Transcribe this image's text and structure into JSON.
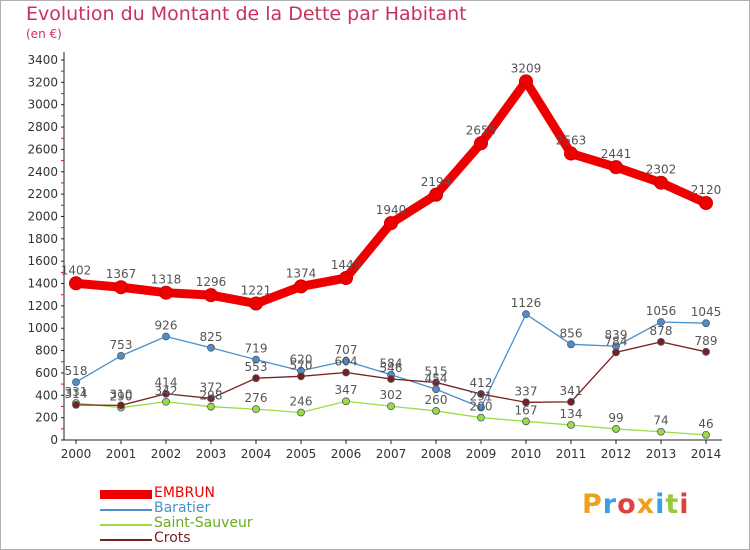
{
  "title": "Evolution du Montant de la Dette par Habitant",
  "subtitle": "(en €)",
  "logo": {
    "text": "Proxiti",
    "colors": [
      "#f0a020",
      "#3aa0e0",
      "#e04040",
      "#f0a020",
      "#3aa0e0",
      "#9ac83c",
      "#e04040"
    ]
  },
  "chart_data": {
    "type": "line",
    "x": [
      "2000",
      "2001",
      "2002",
      "2003",
      "2004",
      "2005",
      "2006",
      "2007",
      "2008",
      "2009",
      "2010",
      "2011",
      "2012",
      "2013",
      "2014"
    ],
    "y_ticks": [
      "0",
      "200",
      "400",
      "600",
      "800",
      "1000",
      "1200",
      "1400",
      "1600",
      "1800",
      "2000",
      "2200",
      "2400",
      "2600",
      "2800",
      "3000",
      "3200",
      "3400"
    ],
    "ylim": [
      0,
      3400
    ],
    "grid": false,
    "legend_position": "bottom-left",
    "series": [
      {
        "name": "EMBRUN",
        "color": "#ee0000",
        "values": [
          1402,
          1367,
          1318,
          1296,
          1221,
          1374,
          1449,
          1940,
          2194,
          2655,
          3209,
          2563,
          2441,
          2302,
          2120
        ],
        "labels": [
          "1402",
          "1367",
          "1318",
          "1296",
          "1221",
          "1374",
          "1449",
          "1940",
          "2194",
          "2655",
          "3209",
          "2563",
          "2441",
          "2302",
          "2120"
        ]
      },
      {
        "name": "Baratier",
        "color": "#4a90cc",
        "values": [
          518,
          753,
          926,
          825,
          719,
          620,
          707,
          584,
          454,
          291,
          1126,
          856,
          839,
          1056,
          1045
        ],
        "labels": [
          "518",
          "753",
          "926",
          "825",
          "719",
          "620",
          "707",
          "584",
          "454",
          "291",
          "1126",
          "856",
          "839",
          "1056",
          "1045"
        ]
      },
      {
        "name": "Saint-Sauveur",
        "color": "#99dd44",
        "values": [
          331,
          290,
          342,
          298,
          276,
          246,
          347,
          302,
          260,
          200,
          167,
          134,
          99,
          74,
          46
        ],
        "labels": [
          "331",
          "290",
          "342",
          "298",
          "276",
          "246",
          "347",
          "302",
          "260",
          "200",
          "167",
          "134",
          "99",
          "74",
          "46"
        ]
      },
      {
        "name": "Crots",
        "color": "#7a1f1f",
        "values": [
          314,
          310,
          414,
          372,
          553,
          570,
          604,
          546,
          515,
          412,
          337,
          341,
          784,
          878,
          789
        ],
        "labels": [
          "314",
          "310",
          "414",
          "372",
          "553",
          "570",
          "604",
          "546",
          "515",
          "412",
          "337",
          "341",
          "784",
          "878",
          "789"
        ]
      }
    ]
  }
}
